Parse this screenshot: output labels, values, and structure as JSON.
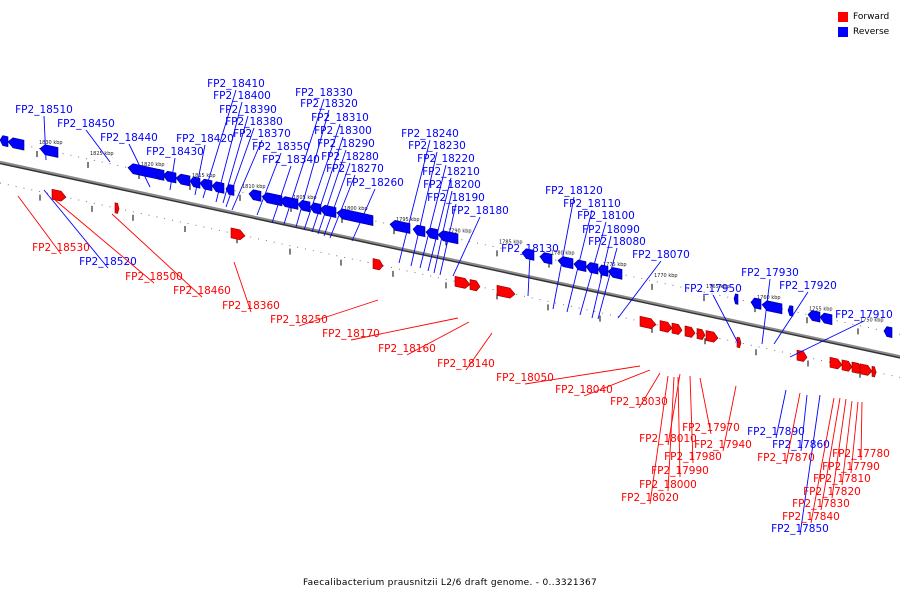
{
  "legend": {
    "forward_label": "Forward",
    "reverse_label": "Reverse",
    "forward_color": "#ff0000",
    "reverse_color": "#0000ff"
  },
  "caption": "Faecalibacterium prausnitzii L2/6 draft genome. - 0..3321367",
  "kbp_ticks": [
    "1830 kbp",
    "1825 kbp",
    "1820 kbp",
    "1815 kbp",
    "1810 kbp",
    "1805 kbp",
    "1800 kbp",
    "1795 kbp",
    "1790 kbp",
    "1785 kbp",
    "1780 kbp",
    "1775 kbp",
    "1770 kbp",
    "1765 kbp",
    "1760 kbp",
    "1755 kbp",
    "1750 kbp"
  ],
  "reverse_genes": [
    "FP2_18510",
    "FP2_18450",
    "FP2_18440",
    "FP2_18430",
    "FP2_18420",
    "FP2_18410",
    "FP2_18400",
    "FP2_18390",
    "FP2_18380",
    "FP2_18370",
    "FP2_18350",
    "FP2_18340",
    "FP2_18330",
    "FP2_18320",
    "FP2_18310",
    "FP2_18300",
    "FP2_18290",
    "FP2_18280",
    "FP2_18270",
    "FP2_18260",
    "FP2_18240",
    "FP2_18230",
    "FP2_18220",
    "FP2_18210",
    "FP2_18200",
    "FP2_18190",
    "FP2_18180",
    "FP2_18130",
    "FP2_18120",
    "FP2_18110",
    "FP2_18100",
    "FP2_18090",
    "FP2_18080",
    "FP2_18070",
    "FP2_17950",
    "FP2_17930",
    "FP2_17920",
    "FP2_17910",
    "FP2_18520",
    "FP2_17890",
    "FP2_17860",
    "FP2_17850"
  ],
  "forward_genes": [
    "FP2_18530",
    "FP2_18500",
    "FP2_18460",
    "FP2_18360",
    "FP2_18250",
    "FP2_18170",
    "FP2_18160",
    "FP2_18140",
    "FP2_18050",
    "FP2_18040",
    "FP2_18030",
    "FP2_17970",
    "FP2_17940",
    "FP2_18010",
    "FP2_17980",
    "FP2_17990",
    "FP2_18000",
    "FP2_18020",
    "FP2_17870",
    "FP2_17780",
    "FP2_17790",
    "FP2_17810",
    "FP2_17820",
    "FP2_17830",
    "FP2_17840"
  ]
}
